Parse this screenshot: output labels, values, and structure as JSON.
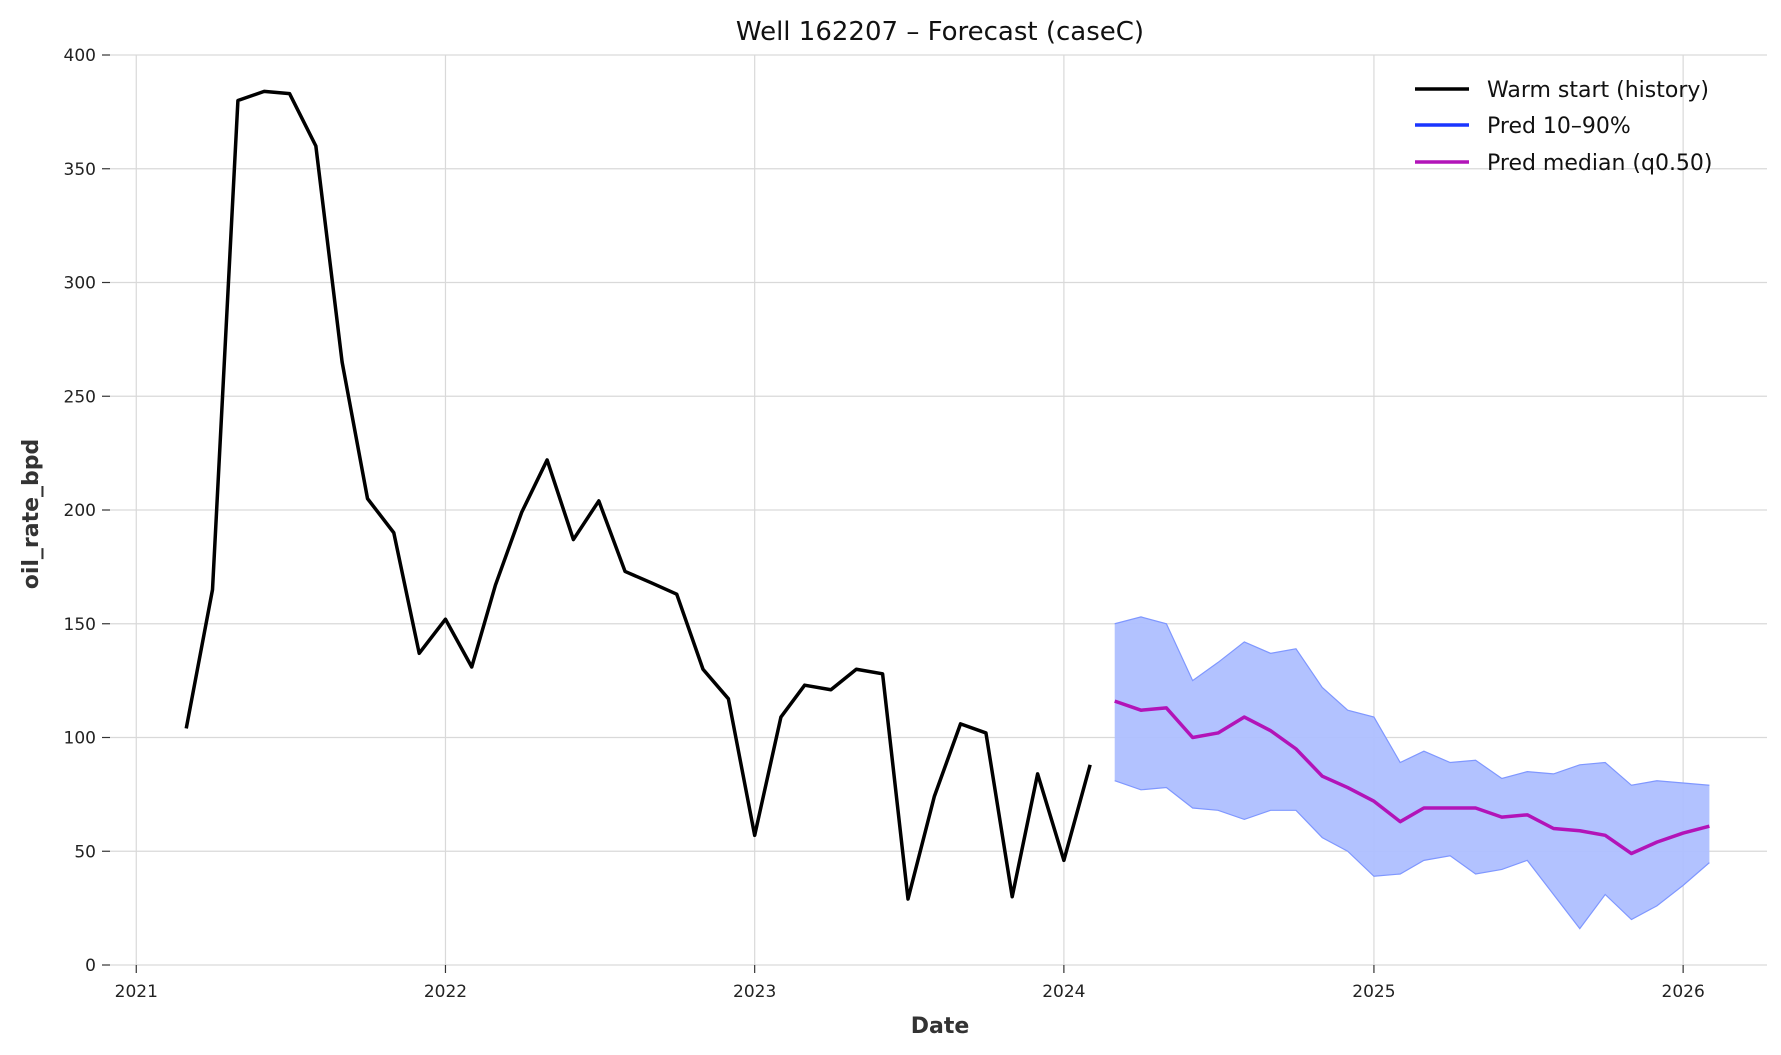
{
  "chart_data": {
    "type": "line",
    "title": "Well 162207 – Forecast (caseC)",
    "xlabel": "Date",
    "ylabel": "oil_rate_bpd",
    "x_ticks": [
      "2021",
      "2022",
      "2023",
      "2024",
      "2025",
      "2026"
    ],
    "y_ticks": [
      "0",
      "50",
      "100",
      "150",
      "200",
      "250",
      "300",
      "350",
      "400"
    ],
    "ylim": [
      0,
      400
    ],
    "xlim": [
      "2020-12-01",
      "2026-04-10"
    ],
    "grid": true,
    "legend_position": "top-right",
    "series": [
      {
        "name": "Warm start (history)",
        "color": "#000000",
        "x": [
          "2021-03-01",
          "2021-04-01",
          "2021-05-01",
          "2021-06-01",
          "2021-07-01",
          "2021-08-01",
          "2021-09-01",
          "2021-10-01",
          "2021-11-01",
          "2021-12-01",
          "2022-01-01",
          "2022-02-01",
          "2022-03-01",
          "2022-04-01",
          "2022-05-01",
          "2022-06-01",
          "2022-07-01",
          "2022-08-01",
          "2022-09-01",
          "2022-10-01",
          "2022-11-01",
          "2022-12-01",
          "2023-01-01",
          "2023-02-01",
          "2023-03-01",
          "2023-04-01",
          "2023-05-01",
          "2023-06-01",
          "2023-07-01",
          "2023-08-01",
          "2023-09-01",
          "2023-10-01",
          "2023-11-01",
          "2023-12-01",
          "2024-01-01",
          "2024-02-01"
        ],
        "values": [
          104,
          165,
          380,
          384,
          383,
          360,
          265,
          205,
          190,
          137,
          152,
          131,
          167,
          199,
          222,
          187,
          204,
          173,
          168,
          163,
          130,
          117,
          57,
          109,
          123,
          121,
          130,
          128,
          29,
          74,
          106,
          102,
          30,
          84,
          46,
          88
        ]
      },
      {
        "name": "Pred 10–90%",
        "color": "#1a35ff",
        "fill": "#aebfff",
        "x": [
          "2024-03-01",
          "2024-04-01",
          "2024-05-01",
          "2024-06-01",
          "2024-07-01",
          "2024-08-01",
          "2024-09-01",
          "2024-10-01",
          "2024-11-01",
          "2024-12-01",
          "2025-01-01",
          "2025-02-01",
          "2025-03-01",
          "2025-04-01",
          "2025-05-01",
          "2025-06-01",
          "2025-07-01",
          "2025-08-01",
          "2025-09-01",
          "2025-10-01",
          "2025-11-01",
          "2025-12-01",
          "2026-01-01",
          "2026-02-01"
        ],
        "lower": [
          81,
          77,
          78,
          69,
          68,
          64,
          68,
          68,
          56,
          50,
          39,
          40,
          46,
          48,
          40,
          42,
          46,
          31,
          16,
          31,
          20,
          26,
          35,
          45
        ],
        "upper": [
          150,
          153,
          150,
          125,
          133,
          142,
          137,
          139,
          122,
          112,
          109,
          89,
          94,
          89,
          90,
          82,
          85,
          84,
          88,
          89,
          79,
          81,
          80,
          79
        ]
      },
      {
        "name": "Pred median (q0.50)",
        "color": "#b214b8",
        "x": [
          "2024-03-01",
          "2024-04-01",
          "2024-05-01",
          "2024-06-01",
          "2024-07-01",
          "2024-08-01",
          "2024-09-01",
          "2024-10-01",
          "2024-11-01",
          "2024-12-01",
          "2025-01-01",
          "2025-02-01",
          "2025-03-01",
          "2025-04-01",
          "2025-05-01",
          "2025-06-01",
          "2025-07-01",
          "2025-08-01",
          "2025-09-01",
          "2025-10-01",
          "2025-11-01",
          "2025-12-01",
          "2026-01-01",
          "2026-02-01"
        ],
        "values": [
          116,
          112,
          113,
          100,
          102,
          109,
          103,
          95,
          83,
          78,
          72,
          63,
          69,
          69,
          69,
          65,
          66,
          60,
          59,
          57,
          49,
          54,
          58,
          61
        ]
      }
    ]
  }
}
